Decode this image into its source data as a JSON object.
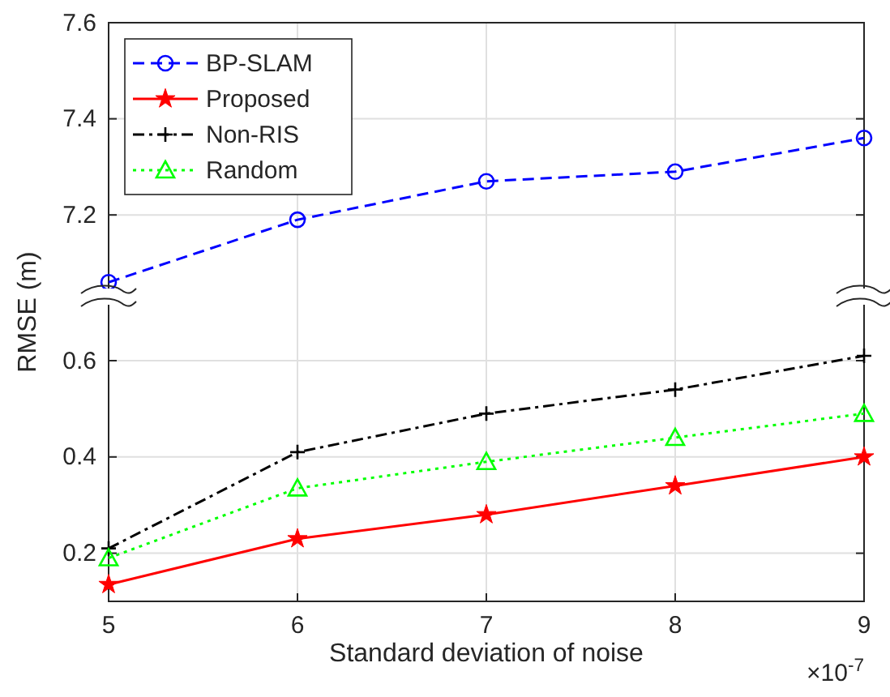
{
  "chart_data": [
    {
      "type": "line",
      "x": [
        5,
        6,
        7,
        8,
        9
      ],
      "xlim": [
        5,
        9
      ],
      "xticks": [
        5,
        6,
        7,
        8,
        9
      ],
      "ylim": [
        7.03,
        7.6
      ],
      "yticks": [
        7.2,
        7.4,
        7.6
      ],
      "tick_labels": "y",
      "grid": true,
      "legend": "top left",
      "series": [
        {
          "name": "BP-SLAM",
          "color": "#0000ff",
          "values": [
            7.06,
            7.19,
            7.27,
            7.29,
            7.36
          ],
          "marker": "circle",
          "line_style": "dashed"
        }
      ]
    },
    {
      "type": "line",
      "x": [
        5,
        6,
        7,
        8,
        9
      ],
      "xlim": [
        5,
        9
      ],
      "xticks": [
        5,
        6,
        7,
        8,
        9
      ],
      "ylim": [
        0.1,
        0.733
      ],
      "yticks": [
        0.2,
        0.4,
        0.6
      ],
      "grid": true,
      "legend": "top left",
      "xlabel": "Standard deviation of noise",
      "ylabel": "RMSE (m)",
      "annotations": [
        "×10$^{-7}$"
      ],
      "series": [
        {
          "name": "Proposed",
          "color": "#ff0000",
          "values": [
            0.135,
            0.23,
            0.28,
            0.34,
            0.4
          ],
          "marker": "star",
          "line_style": "solid"
        },
        {
          "name": "Non-RIS",
          "color": "#000000",
          "values": [
            0.21,
            0.41,
            0.49,
            0.54,
            0.61
          ],
          "marker": "cross",
          "line_style": "dashdot"
        },
        {
          "name": "Random",
          "color": "#00ff00",
          "values": [
            0.19,
            0.335,
            0.39,
            0.44,
            0.49
          ],
          "marker": "triangle",
          "line_style": "dotted"
        }
      ]
    }
  ]
}
